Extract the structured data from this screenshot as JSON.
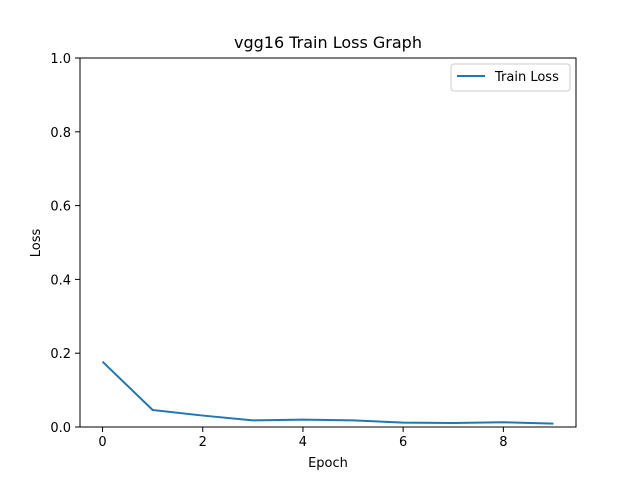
{
  "chart_data": {
    "type": "line",
    "title": "vgg16 Train Loss Graph",
    "xlabel": "Epoch",
    "ylabel": "Loss",
    "xlim": [
      -0.45,
      9.45
    ],
    "ylim": [
      0,
      1.0
    ],
    "xticks": [
      0,
      2,
      4,
      6,
      8
    ],
    "yticks": [
      0.0,
      0.2,
      0.4,
      0.6,
      0.8,
      1.0
    ],
    "xtick_labels": [
      "0",
      "2",
      "4",
      "6",
      "8"
    ],
    "ytick_labels": [
      "0.0",
      "0.2",
      "0.4",
      "0.6",
      "0.8",
      "1.0"
    ],
    "grid": false,
    "legend_position": "top-right",
    "series": [
      {
        "name": "Train Loss",
        "color": "#1f77b4",
        "x": [
          0,
          1,
          2,
          3,
          4,
          5,
          6,
          7,
          8,
          9
        ],
        "y": [
          0.177,
          0.046,
          0.031,
          0.018,
          0.02,
          0.018,
          0.012,
          0.011,
          0.013,
          0.009
        ]
      }
    ]
  }
}
